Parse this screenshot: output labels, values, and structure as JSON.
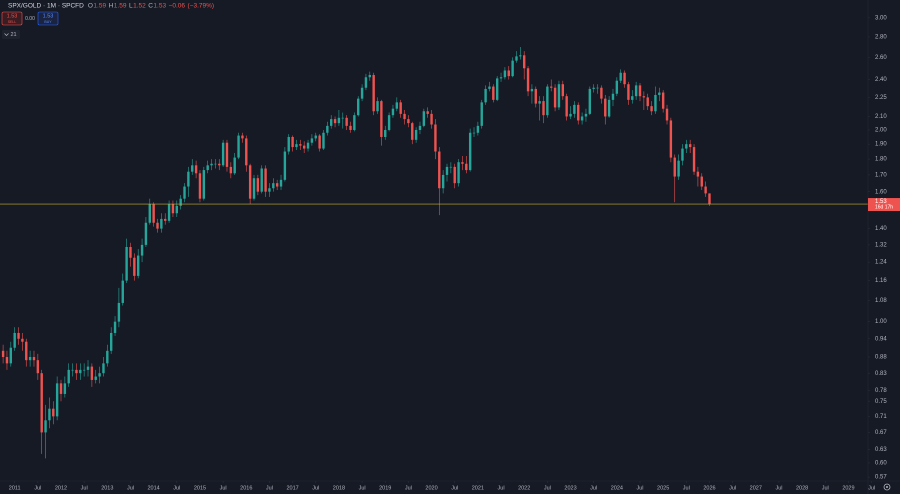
{
  "chart_data": {
    "type": "candlestick",
    "title": "SPX/GOLD · 1M · SPCFD",
    "ohlc_letters": [
      "O",
      "H",
      "L",
      "C"
    ],
    "change": {
      "value": -0.06,
      "label": "−0.06"
    },
    "change_pct": {
      "value": -3.79,
      "label": "(−3.79%)"
    },
    "trade": {
      "sell": "SELL",
      "buy": "BUY",
      "spread": {
        "value": 0,
        "label": "0.00"
      }
    },
    "indicators_count": 21,
    "countdown": "16d 17h",
    "log": true,
    "up_color": "#26a69a",
    "down_color": "#ef5350",
    "price_line_color": "#c9b037",
    "ylim": [
      0.56,
      3.2
    ],
    "yticks": [
      {
        "value": 3,
        "label": "3.00"
      },
      {
        "value": 2.8,
        "label": "2.80"
      },
      {
        "value": 2.6,
        "label": "2.60"
      },
      {
        "value": 2.4,
        "label": "2.40"
      },
      2.25,
      {
        "value": 2.1,
        "label": "2.10"
      },
      {
        "value": 2,
        "label": "2.00"
      },
      {
        "value": 1.9,
        "label": "1.90"
      },
      {
        "value": 1.8,
        "label": "1.80"
      },
      {
        "value": 1.7,
        "label": "1.70"
      },
      {
        "value": 1.6,
        "label": "1.60"
      },
      {
        "value": 1.4,
        "label": "1.40"
      },
      1.32,
      1.24,
      1.16,
      1.08,
      {
        "value": 1,
        "label": "1.00"
      },
      0.94,
      0.88,
      0.83,
      0.78,
      0.75,
      0.71,
      0.67,
      0.63,
      {
        "value": 0.6,
        "label": "0.60"
      },
      0.57
    ],
    "xticks": [
      {
        "value": "2011-01",
        "label": "2011"
      },
      {
        "value": "2011-07",
        "label": "Jul"
      },
      {
        "value": "2012-01",
        "label": "2012"
      },
      {
        "value": "2012-07",
        "label": "Jul"
      },
      {
        "value": "2013-01",
        "label": "2013"
      },
      {
        "value": "2013-07",
        "label": "Jul"
      },
      {
        "value": "2014-01",
        "label": "2014"
      },
      {
        "value": "2014-07",
        "label": "Jul"
      },
      {
        "value": "2015-01",
        "label": "2015"
      },
      {
        "value": "2015-07",
        "label": "Jul"
      },
      {
        "value": "2016-01",
        "label": "2016"
      },
      {
        "value": "2016-07",
        "label": "Jul"
      },
      {
        "value": "2017-01",
        "label": "2017"
      },
      {
        "value": "2017-07",
        "label": "Jul"
      },
      {
        "value": "2018-01",
        "label": "2018"
      },
      {
        "value": "2018-07",
        "label": "Jul"
      },
      {
        "value": "2019-01",
        "label": "2019"
      },
      {
        "value": "2019-07",
        "label": "Jul"
      },
      {
        "value": "2020-01",
        "label": "2020"
      },
      {
        "value": "2020-07",
        "label": "Jul"
      },
      {
        "value": "2021-01",
        "label": "2021"
      },
      {
        "value": "2021-07",
        "label": "Jul"
      },
      {
        "value": "2022-01",
        "label": "2022"
      },
      {
        "value": "2022-07",
        "label": "Jul"
      },
      {
        "value": "2023-01",
        "label": "2023"
      },
      {
        "value": "2023-07",
        "label": "Jul"
      },
      {
        "value": "2024-01",
        "label": "2024"
      },
      {
        "value": "2024-07",
        "label": "Jul"
      },
      {
        "value": "2025-01",
        "label": "2025"
      },
      {
        "value": "2025-07",
        "label": "Jul"
      },
      {
        "value": "2026-01",
        "label": "2026"
      },
      {
        "value": "2026-07",
        "label": "Jul"
      },
      {
        "value": "2027-01",
        "label": "2027"
      },
      {
        "value": "2027-07",
        "label": "Jul"
      },
      {
        "value": "2028-01",
        "label": "2028"
      },
      {
        "value": "2028-07",
        "label": "Jul"
      },
      {
        "value": "2029-01",
        "label": "2029"
      },
      {
        "value": "2029-07",
        "label": "Jul"
      }
    ],
    "x": [
      "2010-10",
      "2010-11",
      "2010-12",
      "2011-01",
      "2011-02",
      "2011-03",
      "2011-04",
      "2011-05",
      "2011-06",
      "2011-07",
      "2011-08",
      "2011-09",
      "2011-10",
      "2011-11",
      "2011-12",
      "2012-01",
      "2012-02",
      "2012-03",
      "2012-04",
      "2012-05",
      "2012-06",
      "2012-07",
      "2012-08",
      "2012-09",
      "2012-10",
      "2012-11",
      "2012-12",
      "2013-01",
      "2013-02",
      "2013-03",
      "2013-04",
      "2013-05",
      "2013-06",
      "2013-07",
      "2013-08",
      "2013-09",
      "2013-10",
      "2013-11",
      "2013-12",
      "2014-01",
      "2014-02",
      "2014-03",
      "2014-04",
      "2014-05",
      "2014-06",
      "2014-07",
      "2014-08",
      "2014-09",
      "2014-10",
      "2014-11",
      "2014-12",
      "2015-01",
      "2015-02",
      "2015-03",
      "2015-04",
      "2015-05",
      "2015-06",
      "2015-07",
      "2015-08",
      "2015-09",
      "2015-10",
      "2015-11",
      "2015-12",
      "2016-01",
      "2016-02",
      "2016-03",
      "2016-04",
      "2016-05",
      "2016-06",
      "2016-07",
      "2016-08",
      "2016-09",
      "2016-10",
      "2016-11",
      "2016-12",
      "2017-01",
      "2017-02",
      "2017-03",
      "2017-04",
      "2017-05",
      "2017-06",
      "2017-07",
      "2017-08",
      "2017-09",
      "2017-10",
      "2017-11",
      "2017-12",
      "2018-01",
      "2018-02",
      "2018-03",
      "2018-04",
      "2018-05",
      "2018-06",
      "2018-07",
      "2018-08",
      "2018-09",
      "2018-10",
      "2018-11",
      "2018-12",
      "2019-01",
      "2019-02",
      "2019-03",
      "2019-04",
      "2019-05",
      "2019-06",
      "2019-07",
      "2019-08",
      "2019-09",
      "2019-10",
      "2019-11",
      "2019-12",
      "2020-01",
      "2020-02",
      "2020-03",
      "2020-04",
      "2020-05",
      "2020-06",
      "2020-07",
      "2020-08",
      "2020-09",
      "2020-10",
      "2020-11",
      "2020-12",
      "2021-01",
      "2021-02",
      "2021-03",
      "2021-04",
      "2021-05",
      "2021-06",
      "2021-07",
      "2021-08",
      "2021-09",
      "2021-10",
      "2021-11",
      "2021-12",
      "2022-01",
      "2022-02",
      "2022-03",
      "2022-04",
      "2022-05",
      "2022-06",
      "2022-07",
      "2022-08",
      "2022-09",
      "2022-10",
      "2022-11",
      "2022-12",
      "2023-01",
      "2023-02",
      "2023-03",
      "2023-04",
      "2023-05",
      "2023-06",
      "2023-07",
      "2023-08",
      "2023-09",
      "2023-10",
      "2023-11",
      "2023-12",
      "2024-01",
      "2024-02",
      "2024-03",
      "2024-04",
      "2024-05",
      "2024-06",
      "2024-07",
      "2024-08",
      "2024-09",
      "2024-10",
      "2024-11",
      "2024-12",
      "2025-01",
      "2025-02",
      "2025-03",
      "2025-04",
      "2025-05",
      "2025-06",
      "2025-07",
      "2025-08",
      "2025-09",
      "2025-10",
      "2025-11",
      "2025-12",
      "2026-01"
    ],
    "open": [
      0.9,
      0.88,
      0.86,
      0.91,
      0.96,
      0.94,
      0.93,
      0.87,
      0.88,
      0.87,
      0.83,
      0.67,
      0.7,
      0.73,
      0.71,
      0.8,
      0.77,
      0.8,
      0.84,
      0.84,
      0.83,
      0.84,
      0.84,
      0.85,
      0.81,
      0.82,
      0.83,
      0.86,
      0.9,
      0.96,
      1.0,
      1.07,
      1.16,
      1.31,
      1.26,
      1.18,
      1.27,
      1.32,
      1.43,
      1.53,
      1.43,
      1.4,
      1.45,
      1.44,
      1.53,
      1.48,
      1.52,
      1.56,
      1.63,
      1.72,
      1.76,
      1.71,
      1.56,
      1.73,
      1.76,
      1.77,
      1.77,
      1.76,
      1.91,
      1.75,
      1.71,
      1.81,
      1.96,
      1.94,
      1.76,
      1.56,
      1.68,
      1.6,
      1.74,
      1.6,
      1.62,
      1.65,
      1.63,
      1.67,
      1.85,
      1.95,
      1.88,
      1.9,
      1.89,
      1.87,
      1.91,
      1.94,
      1.96,
      1.87,
      1.98,
      2.03,
      2.08,
      2.05,
      2.09,
      2.09,
      2.03,
      2.0,
      2.11,
      2.24,
      2.33,
      2.42,
      2.44,
      2.14,
      2.22,
      1.95,
      2.0,
      2.11,
      2.16,
      2.21,
      2.12,
      2.08,
      2.05,
      1.93,
      2.0,
      2.03,
      2.14,
      2.12,
      2.04,
      1.85,
      1.62,
      1.7,
      1.75,
      1.75,
      1.65,
      1.78,
      1.77,
      1.73,
      1.98,
      1.98,
      2.03,
      2.21,
      2.32,
      2.34,
      2.23,
      2.41,
      2.42,
      2.48,
      2.43,
      2.57,
      2.61,
      2.62,
      2.5,
      2.3,
      2.32,
      2.2,
      2.22,
      2.11,
      2.34,
      2.33,
      2.17,
      2.36,
      2.26,
      2.1,
      2.12,
      2.19,
      2.07,
      2.1,
      2.12,
      2.32,
      2.33,
      2.33,
      2.24,
      2.1,
      2.23,
      2.28,
      2.39,
      2.46,
      2.36,
      2.23,
      2.26,
      2.35,
      2.26,
      2.25,
      2.18,
      2.14,
      2.27,
      2.29,
      2.16,
      2.07,
      1.81,
      1.69,
      1.79,
      1.87,
      1.9,
      1.88,
      1.72,
      1.69,
      1.63,
      1.59
    ],
    "high": [
      0.92,
      0.9,
      0.93,
      0.98,
      0.98,
      0.96,
      0.94,
      0.9,
      0.9,
      0.89,
      0.84,
      0.74,
      0.76,
      0.75,
      0.82,
      0.81,
      0.82,
      0.86,
      0.86,
      0.86,
      0.86,
      0.86,
      0.87,
      0.86,
      0.84,
      0.85,
      0.88,
      0.92,
      0.98,
      1.02,
      1.13,
      1.19,
      1.35,
      1.33,
      1.28,
      1.3,
      1.35,
      1.46,
      1.56,
      1.54,
      1.45,
      1.48,
      1.48,
      1.55,
      1.55,
      1.55,
      1.58,
      1.65,
      1.75,
      1.8,
      1.79,
      1.73,
      1.75,
      1.79,
      1.8,
      1.8,
      1.8,
      1.93,
      1.93,
      1.78,
      1.84,
      1.98,
      1.98,
      1.96,
      1.77,
      1.7,
      1.7,
      1.76,
      1.76,
      1.65,
      1.68,
      1.67,
      1.7,
      1.88,
      1.97,
      1.96,
      1.93,
      1.93,
      1.92,
      1.93,
      1.97,
      1.98,
      1.97,
      2.0,
      2.06,
      2.11,
      2.1,
      2.15,
      2.13,
      2.11,
      2.06,
      2.13,
      2.26,
      2.36,
      2.45,
      2.47,
      2.46,
      2.25,
      2.23,
      2.03,
      2.13,
      2.19,
      2.25,
      2.23,
      2.15,
      2.11,
      2.06,
      2.02,
      2.06,
      2.16,
      2.17,
      2.15,
      2.08,
      1.88,
      1.73,
      1.77,
      1.78,
      1.77,
      1.8,
      1.82,
      1.82,
      2.01,
      2.02,
      2.06,
      2.23,
      2.35,
      2.38,
      2.36,
      2.43,
      2.46,
      2.51,
      2.52,
      2.6,
      2.66,
      2.7,
      2.66,
      2.52,
      2.36,
      2.34,
      2.26,
      2.26,
      2.36,
      2.4,
      2.36,
      2.39,
      2.39,
      2.28,
      2.18,
      2.22,
      2.21,
      2.13,
      2.16,
      2.34,
      2.36,
      2.36,
      2.35,
      2.27,
      2.26,
      2.32,
      2.42,
      2.49,
      2.48,
      2.38,
      2.31,
      2.38,
      2.37,
      2.3,
      2.28,
      2.22,
      2.34,
      2.33,
      2.31,
      2.19,
      2.09,
      1.83,
      1.83,
      1.9,
      1.93,
      1.93,
      1.9,
      1.75,
      1.71,
      1.66,
      1.59
    ],
    "low": [
      0.86,
      0.84,
      0.85,
      0.9,
      0.92,
      0.9,
      0.85,
      0.85,
      0.85,
      0.81,
      0.62,
      0.61,
      0.68,
      0.69,
      0.7,
      0.75,
      0.76,
      0.79,
      0.82,
      0.81,
      0.81,
      0.82,
      0.82,
      0.79,
      0.8,
      0.8,
      0.82,
      0.85,
      0.89,
      0.95,
      0.98,
      1.06,
      1.15,
      1.22,
      1.16,
      1.17,
      1.24,
      1.31,
      1.42,
      1.41,
      1.38,
      1.38,
      1.42,
      1.43,
      1.46,
      1.46,
      1.5,
      1.54,
      1.57,
      1.7,
      1.68,
      1.54,
      1.55,
      1.71,
      1.73,
      1.74,
      1.73,
      1.75,
      1.72,
      1.68,
      1.7,
      1.8,
      1.91,
      1.72,
      1.53,
      1.55,
      1.58,
      1.59,
      1.57,
      1.57,
      1.6,
      1.61,
      1.61,
      1.66,
      1.83,
      1.85,
      1.86,
      1.86,
      1.84,
      1.85,
      1.89,
      1.92,
      1.85,
      1.86,
      1.96,
      2.01,
      2.02,
      2.03,
      2.01,
      2.0,
      1.98,
      1.99,
      2.1,
      2.22,
      2.31,
      2.39,
      2.11,
      2.12,
      1.89,
      1.93,
      1.99,
      2.09,
      2.14,
      2.09,
      2.04,
      2.02,
      1.9,
      1.91,
      1.97,
      2.02,
      2.09,
      2.01,
      1.8,
      1.47,
      1.59,
      1.66,
      1.71,
      1.62,
      1.63,
      1.73,
      1.71,
      1.72,
      1.95,
      1.96,
      2.01,
      2.19,
      2.3,
      2.21,
      2.22,
      2.38,
      2.4,
      2.4,
      2.42,
      2.55,
      2.58,
      2.4,
      2.26,
      2.2,
      2.17,
      2.07,
      2.05,
      2.09,
      2.3,
      2.14,
      2.15,
      2.23,
      2.07,
      2.08,
      2.09,
      2.04,
      2.04,
      2.06,
      2.11,
      2.29,
      2.28,
      2.2,
      2.04,
      2.09,
      2.18,
      2.26,
      2.37,
      2.33,
      2.19,
      2.2,
      2.23,
      2.22,
      2.15,
      2.15,
      2.11,
      2.12,
      2.22,
      2.13,
      2.04,
      1.78,
      1.54,
      1.67,
      1.76,
      1.84,
      1.84,
      1.7,
      1.63,
      1.61,
      1.57,
      1.52
    ],
    "close": [
      0.88,
      0.86,
      0.91,
      0.96,
      0.94,
      0.93,
      0.87,
      0.88,
      0.87,
      0.83,
      0.67,
      0.7,
      0.73,
      0.71,
      0.8,
      0.77,
      0.8,
      0.84,
      0.84,
      0.83,
      0.84,
      0.84,
      0.85,
      0.81,
      0.82,
      0.83,
      0.86,
      0.9,
      0.96,
      1.0,
      1.07,
      1.16,
      1.31,
      1.26,
      1.18,
      1.27,
      1.32,
      1.43,
      1.53,
      1.43,
      1.4,
      1.45,
      1.44,
      1.53,
      1.48,
      1.52,
      1.56,
      1.63,
      1.72,
      1.76,
      1.71,
      1.56,
      1.73,
      1.76,
      1.77,
      1.77,
      1.76,
      1.91,
      1.75,
      1.71,
      1.81,
      1.96,
      1.94,
      1.76,
      1.56,
      1.68,
      1.6,
      1.74,
      1.6,
      1.62,
      1.65,
      1.63,
      1.67,
      1.85,
      1.95,
      1.88,
      1.9,
      1.89,
      1.87,
      1.91,
      1.94,
      1.96,
      1.87,
      1.98,
      2.03,
      2.08,
      2.05,
      2.09,
      2.09,
      2.03,
      2.0,
      2.11,
      2.24,
      2.33,
      2.42,
      2.44,
      2.14,
      2.22,
      1.95,
      2.0,
      2.11,
      2.16,
      2.21,
      2.12,
      2.08,
      2.05,
      1.93,
      2.0,
      2.03,
      2.14,
      2.12,
      2.04,
      1.85,
      1.62,
      1.7,
      1.75,
      1.75,
      1.65,
      1.78,
      1.77,
      1.73,
      1.98,
      1.98,
      2.03,
      2.21,
      2.32,
      2.34,
      2.23,
      2.41,
      2.42,
      2.48,
      2.43,
      2.57,
      2.61,
      2.62,
      2.5,
      2.3,
      2.32,
      2.2,
      2.22,
      2.11,
      2.34,
      2.33,
      2.17,
      2.36,
      2.26,
      2.1,
      2.12,
      2.19,
      2.07,
      2.1,
      2.12,
      2.32,
      2.33,
      2.33,
      2.24,
      2.1,
      2.23,
      2.28,
      2.39,
      2.46,
      2.36,
      2.23,
      2.26,
      2.35,
      2.26,
      2.25,
      2.18,
      2.14,
      2.27,
      2.29,
      2.16,
      2.07,
      1.81,
      1.69,
      1.79,
      1.87,
      1.9,
      1.88,
      1.72,
      1.69,
      1.63,
      1.59,
      1.53
    ]
  }
}
